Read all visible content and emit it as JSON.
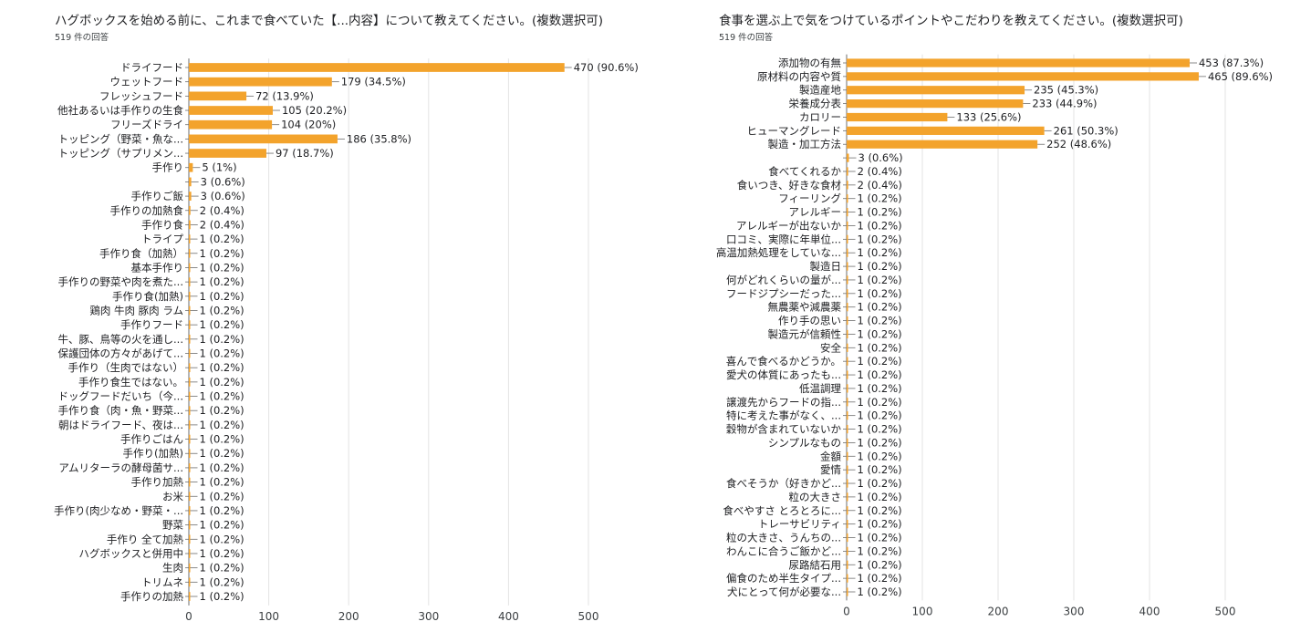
{
  "colors": {
    "bar": "#F3A32C",
    "grid": "#e3e3e3",
    "axis": "#6d6d6d",
    "text": "#202124"
  },
  "left": {
    "title": "ハグボックスを始める前に、これまで食べていた【...内容】について教えてください。(複数選択可)",
    "responses": "519 件の回答"
  },
  "right": {
    "title": "食事を選ぶ上で気をつけているポイントやこだわりを教えてください。(複数選択可)",
    "responses": "519 件の回答"
  },
  "chart_data": [
    {
      "type": "bar",
      "orientation": "horizontal",
      "title": "ハグボックスを始める前に、これまで食べていた【...内容】について教えてください。(複数選択可)",
      "subtitle": "519 件の回答",
      "xlim": [
        0,
        500
      ],
      "xticks": [
        0,
        100,
        200,
        300,
        400,
        500
      ],
      "grid": true,
      "categories": [
        "ドライフード",
        "ウェットフード",
        "フレッシュフード",
        "他社あるいは手作りの生食",
        "フリーズドライ",
        "トッピング（野菜・魚な...",
        "トッピング（サプリメン...",
        "手作り",
        "",
        "手作りご飯",
        "手作りの加熱食",
        "手作り食",
        "トライプ",
        "手作り食（加熱）",
        "基本手作り",
        "手作りの野菜や肉を煮た...",
        "手作り食(加熱)",
        "鶏肉 牛肉 豚肉 ラム",
        "手作りフード",
        "牛、豚、鳥等の火を通し...",
        "保護団体の方々があげて...",
        "手作り（生肉ではない）",
        "手作り食生ではない。",
        "ドッグフードだいち（今...",
        "手作り食（肉・魚・野菜...",
        "朝はドライフード、夜は...",
        "手作りごはん",
        "手作り(加熱)",
        "アムリターラの酵母菌サ...",
        "手作り加熱",
        "お米",
        "手作り(肉少なめ・野菜・...",
        "野菜",
        "手作り 全て加熱",
        "ハグボックスと併用中",
        "生肉",
        "トリムネ",
        "手作りの加熱"
      ],
      "values": [
        470,
        179,
        72,
        105,
        104,
        186,
        97,
        5,
        3,
        3,
        2,
        2,
        1,
        1,
        1,
        1,
        1,
        1,
        1,
        1,
        1,
        1,
        1,
        1,
        1,
        1,
        1,
        1,
        1,
        1,
        1,
        1,
        1,
        1,
        1,
        1,
        1,
        1
      ],
      "value_labels": [
        "470 (90.6%)",
        "179 (34.5%)",
        "72 (13.9%)",
        "105 (20.2%)",
        "104 (20%)",
        "186 (35.8%)",
        "97 (18.7%)",
        "5 (1%)",
        "3 (0.6%)",
        "3 (0.6%)",
        "2 (0.4%)",
        "2 (0.4%)",
        "1 (0.2%)",
        "1 (0.2%)",
        "1 (0.2%)",
        "1 (0.2%)",
        "1 (0.2%)",
        "1 (0.2%)",
        "1 (0.2%)",
        "1 (0.2%)",
        "1 (0.2%)",
        "1 (0.2%)",
        "1 (0.2%)",
        "1 (0.2%)",
        "1 (0.2%)",
        "1 (0.2%)",
        "1 (0.2%)",
        "1 (0.2%)",
        "1 (0.2%)",
        "1 (0.2%)",
        "1 (0.2%)",
        "1 (0.2%)",
        "1 (0.2%)",
        "1 (0.2%)",
        "1 (0.2%)",
        "1 (0.2%)",
        "1 (0.2%)",
        "1 (0.2%)"
      ]
    },
    {
      "type": "bar",
      "orientation": "horizontal",
      "title": "食事を選ぶ上で気をつけているポイントやこだわりを教えてください。(複数選択可)",
      "subtitle": "519 件の回答",
      "xlim": [
        0,
        500
      ],
      "xticks": [
        0,
        100,
        200,
        300,
        400,
        500
      ],
      "grid": true,
      "categories": [
        "添加物の有無",
        "原材料の内容や質",
        "製造産地",
        "栄養成分表",
        "カロリー",
        "ヒューマングレード",
        "製造・加工方法",
        "",
        "食べてくれるか",
        "食いつき、好きな食材",
        "フィーリング",
        "アレルギー",
        "アレルギーが出ないか",
        "口コミ、実際に年単位...",
        "高温加熱処理をしていな...",
        "製造日",
        "何がどれくらいの量が...",
        "フードジプシーだった...",
        "無農薬や減農薬",
        "作り手の思い",
        "製造元が信頼性",
        "安全",
        "喜んで食べるかどうか。",
        "愛犬の体質にあったも...",
        "低温調理",
        "譲渡先からフードの指...",
        "特に考えた事がなく、...",
        "穀物が含まれていないか",
        "シンプルなもの",
        "金額",
        "愛情",
        "食べそうか（好きかど...",
        "粒の大きさ",
        "食べやすさ とろとろに...",
        "トレーサビリティ",
        "粒の大きさ、うんちの...",
        "わんこに合うご飯かど...",
        "尿路結石用",
        "偏食のため半生タイプ...",
        "犬にとって何が必要な..."
      ],
      "values": [
        453,
        465,
        235,
        233,
        133,
        261,
        252,
        3,
        2,
        2,
        1,
        1,
        1,
        1,
        1,
        1,
        1,
        1,
        1,
        1,
        1,
        1,
        1,
        1,
        1,
        1,
        1,
        1,
        1,
        1,
        1,
        1,
        1,
        1,
        1,
        1,
        1,
        1,
        1,
        1
      ],
      "value_labels": [
        "453 (87.3%)",
        "465 (89.6%)",
        "235 (45.3%)",
        "233 (44.9%)",
        "133 (25.6%)",
        "261 (50.3%)",
        "252 (48.6%)",
        "3 (0.6%)",
        "2 (0.4%)",
        "2 (0.4%)",
        "1 (0.2%)",
        "1 (0.2%)",
        "1 (0.2%)",
        "1 (0.2%)",
        "1 (0.2%)",
        "1 (0.2%)",
        "1 (0.2%)",
        "1 (0.2%)",
        "1 (0.2%)",
        "1 (0.2%)",
        "1 (0.2%)",
        "1 (0.2%)",
        "1 (0.2%)",
        "1 (0.2%)",
        "1 (0.2%)",
        "1 (0.2%)",
        "1 (0.2%)",
        "1 (0.2%)",
        "1 (0.2%)",
        "1 (0.2%)",
        "1 (0.2%)",
        "1 (0.2%)",
        "1 (0.2%)",
        "1 (0.2%)",
        "1 (0.2%)",
        "1 (0.2%)",
        "1 (0.2%)",
        "1 (0.2%)",
        "1 (0.2%)",
        "1 (0.2%)"
      ]
    }
  ]
}
